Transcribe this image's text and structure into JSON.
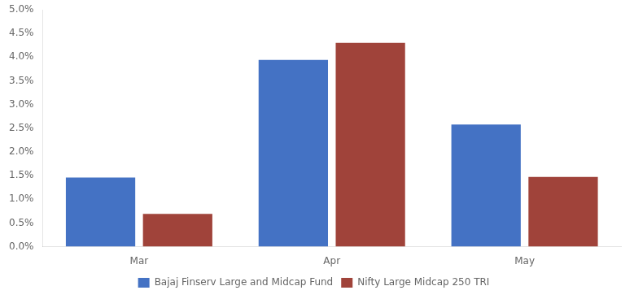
{
  "chart_data": {
    "type": "bar",
    "categories": [
      "Mar",
      "Apr",
      "May"
    ],
    "series": [
      {
        "name": "Bajaj Finserv Large and Midcap Fund",
        "color": "#4472C4",
        "values": [
          0.0146,
          0.0394,
          0.0258
        ]
      },
      {
        "name": "Nifty Large Midcap 250 TRI",
        "color": "#A0433A",
        "values": [
          0.0069,
          0.043,
          0.0147
        ]
      }
    ],
    "ylim": [
      0,
      0.05
    ],
    "yticks": [
      {
        "value": 0.0,
        "label": "0.0%"
      },
      {
        "value": 0.005,
        "label": "0.5%"
      },
      {
        "value": 0.01,
        "label": "1.0%"
      },
      {
        "value": 0.015,
        "label": "1.5%"
      },
      {
        "value": 0.02,
        "label": "2.0%"
      },
      {
        "value": 0.025,
        "label": "2.5%"
      },
      {
        "value": 0.03,
        "label": "3.0%"
      },
      {
        "value": 0.035,
        "label": "3.5%"
      },
      {
        "value": 0.04,
        "label": "4.0%"
      },
      {
        "value": 0.045,
        "label": "4.5%"
      },
      {
        "value": 0.05,
        "label": "5.0%"
      }
    ],
    "grid": false,
    "legend": "bottom"
  }
}
